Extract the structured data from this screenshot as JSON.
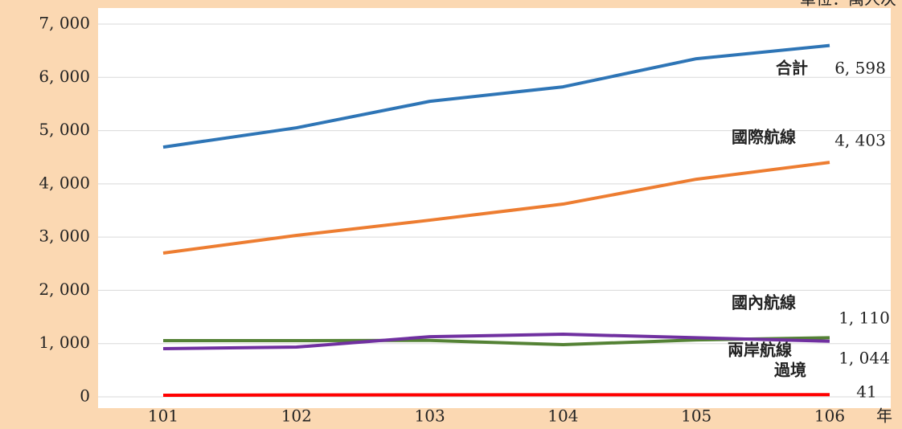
{
  "chart_data": {
    "type": "line",
    "unit": "單位：萬人次",
    "x_unit": "年",
    "categories": [
      "101",
      "102",
      "103",
      "104",
      "105",
      "106"
    ],
    "series": [
      {
        "name": "合計",
        "color": "#2e75b6",
        "values": [
          4690,
          5053,
          5550,
          5822,
          6350,
          6598
        ],
        "value_labels": [
          null,
          null,
          null,
          null,
          null,
          "6, 598"
        ]
      },
      {
        "name": "國際航線",
        "color": "#ed7d31",
        "values": [
          2700,
          3032,
          3318,
          3620,
          4087,
          4403
        ],
        "value_labels": [
          null,
          null,
          null,
          null,
          null,
          "4, 403"
        ]
      },
      {
        "name": "國內航線",
        "color": "#548235",
        "values": [
          1056,
          1056,
          1060,
          980,
          1070,
          1110
        ],
        "value_labels": [
          null,
          null,
          null,
          null,
          null,
          "1, 110"
        ]
      },
      {
        "name": "兩岸航線",
        "color": "#7030a0",
        "values": [
          905,
          935,
          1130,
          1176,
          1110,
          1044
        ],
        "value_labels": [
          null,
          null,
          null,
          null,
          null,
          "1, 044"
        ]
      },
      {
        "name": "過境",
        "color": "#ff0000",
        "values": [
          30,
          35,
          38,
          40,
          40,
          41
        ],
        "value_labels": [
          null,
          null,
          null,
          null,
          null,
          "41"
        ]
      }
    ],
    "ylim": [
      0,
      7000
    ],
    "yticks": [
      0,
      {
        "value": 1000,
        "label": "1, 000"
      },
      {
        "value": 2000,
        "label": "2, 000"
      },
      {
        "value": 3000,
        "label": "3, 000"
      },
      {
        "value": 4000,
        "label": "4, 000"
      },
      {
        "value": 5000,
        "label": "5, 000"
      },
      {
        "value": 6000,
        "label": "6, 000"
      },
      {
        "value": 7000,
        "label": "7, 000"
      }
    ],
    "grid": true
  }
}
